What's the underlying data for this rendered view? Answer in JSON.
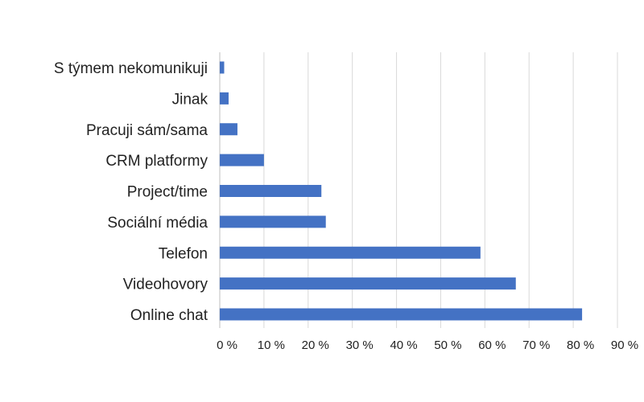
{
  "chart_data": {
    "type": "bar",
    "orientation": "horizontal",
    "title": "",
    "xlabel": "",
    "ylabel": "",
    "categories": [
      "S týmem nekomunikuji",
      "Jinak",
      "Pracuji sám/sama",
      "CRM platformy",
      "Project/time",
      "Sociální média",
      "Telefon",
      "Videohovory",
      "Online chat"
    ],
    "values": [
      1,
      2,
      4,
      10,
      23,
      24,
      59,
      67,
      82
    ],
    "xlim": [
      0,
      90
    ],
    "x_ticks": [
      0,
      10,
      20,
      30,
      40,
      50,
      60,
      70,
      80,
      90
    ],
    "x_tick_labels": [
      "0 %",
      "10 %",
      "20 %",
      "30 %",
      "40 %",
      "50 %",
      "60 %",
      "70 %",
      "80 %",
      "90 %"
    ],
    "grid": "vertical",
    "legend": "none",
    "bar_color": "#4472C4",
    "grid_color": "#D9D9D9"
  }
}
